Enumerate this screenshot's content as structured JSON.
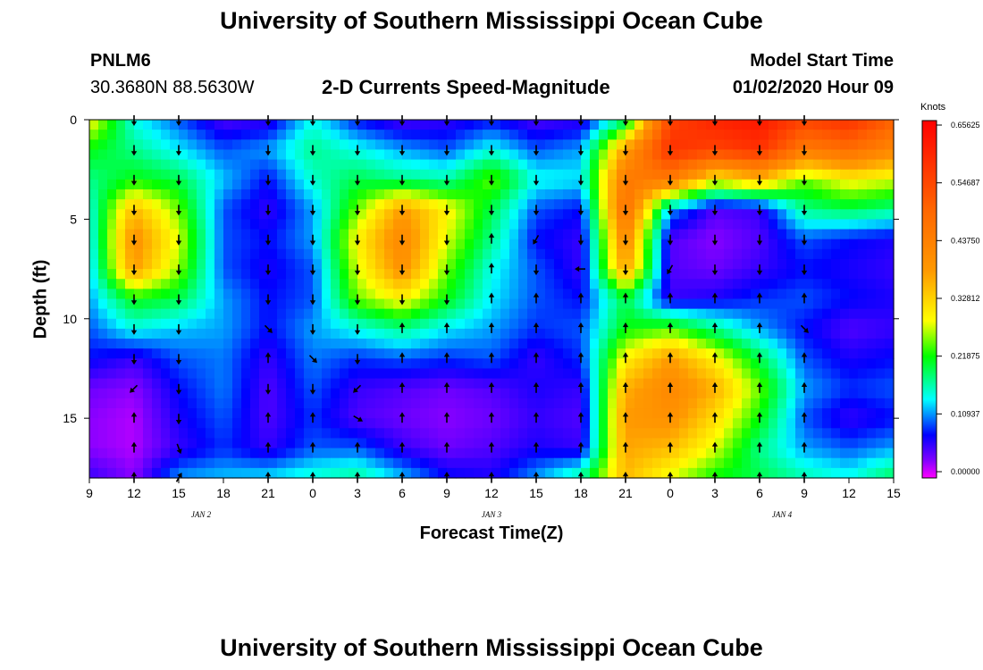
{
  "page": {
    "title_top": "University of Southern Mississippi Ocean Cube",
    "title_bottom": "University of Southern Mississippi Ocean Cube",
    "station_id": "PNLM6",
    "station_coords": "30.3680N 88.5630W",
    "plot_title": "2-D Currents Speed-Magnitude",
    "model_start_label": "Model Start Time",
    "model_start_value": "01/02/2020 Hour 09"
  },
  "colors": {
    "arrow": "#000000",
    "frame": "#000000"
  },
  "chart_data": {
    "type": "heatmap",
    "title": "2-D Currents Speed-Magnitude",
    "xlabel": "Forecast Time(Z)",
    "ylabel": "Depth (ft)",
    "x_ticks": [
      "9",
      "12",
      "15",
      "18",
      "21",
      "0",
      "3",
      "6",
      "9",
      "12",
      "15",
      "18",
      "21",
      "0",
      "3",
      "6",
      "9",
      "12",
      "15"
    ],
    "x_hours_range": [
      0,
      54
    ],
    "day_labels": [
      {
        "label": "JAN  2",
        "hour": 7.5
      },
      {
        "label": "JAN  3",
        "hour": 27
      },
      {
        "label": "JAN  4",
        "hour": 46.5
      }
    ],
    "y_ticks": [
      0,
      5,
      10,
      15
    ],
    "ylim": [
      0,
      18
    ],
    "colorbar": {
      "label": "Knots",
      "range": [
        0,
        0.65625
      ],
      "ticks": [
        "0.65625",
        "0.54687",
        "0.43750",
        "0.32812",
        "0.21875",
        "0.10937",
        "0.00000"
      ]
    },
    "depths": [
      0,
      1.5,
      3,
      4.5,
      6,
      7.5,
      9,
      10.5,
      12,
      13.5,
      15,
      16.5,
      18
    ],
    "times": [
      0,
      3,
      6,
      9,
      12,
      15,
      18,
      21,
      24,
      27,
      30,
      33,
      36,
      39,
      42,
      45,
      48,
      51,
      54
    ],
    "speed": [
      [
        0.3,
        0.15,
        0.1,
        0.05,
        0.06,
        0.15,
        0.08,
        0.05,
        0.06,
        0.08,
        0.05,
        0.06,
        0.18,
        0.55,
        0.6,
        0.62,
        0.55,
        0.58,
        0.5
      ],
      [
        0.22,
        0.18,
        0.14,
        0.1,
        0.12,
        0.18,
        0.15,
        0.12,
        0.1,
        0.15,
        0.1,
        0.12,
        0.38,
        0.58,
        0.55,
        0.58,
        0.45,
        0.48,
        0.42
      ],
      [
        0.18,
        0.22,
        0.2,
        0.13,
        0.08,
        0.16,
        0.2,
        0.18,
        0.17,
        0.25,
        0.15,
        0.14,
        0.45,
        0.45,
        0.3,
        0.35,
        0.25,
        0.3,
        0.28
      ],
      [
        0.15,
        0.35,
        0.25,
        0.1,
        0.06,
        0.12,
        0.25,
        0.38,
        0.3,
        0.2,
        0.1,
        0.08,
        0.48,
        0.12,
        0.05,
        0.06,
        0.18,
        0.2,
        0.18
      ],
      [
        0.14,
        0.4,
        0.28,
        0.1,
        0.08,
        0.12,
        0.3,
        0.42,
        0.28,
        0.18,
        0.08,
        0.06,
        0.42,
        0.05,
        0.03,
        0.05,
        0.1,
        0.08,
        0.07
      ],
      [
        0.13,
        0.38,
        0.26,
        0.1,
        0.07,
        0.1,
        0.28,
        0.4,
        0.25,
        0.15,
        0.1,
        0.06,
        0.38,
        0.05,
        0.04,
        0.06,
        0.08,
        0.07,
        0.06
      ],
      [
        0.12,
        0.22,
        0.2,
        0.12,
        0.08,
        0.1,
        0.25,
        0.3,
        0.22,
        0.14,
        0.1,
        0.08,
        0.2,
        0.06,
        0.07,
        0.09,
        0.1,
        0.08,
        0.07
      ],
      [
        0.1,
        0.15,
        0.13,
        0.12,
        0.08,
        0.12,
        0.15,
        0.18,
        0.14,
        0.12,
        0.09,
        0.1,
        0.22,
        0.24,
        0.18,
        0.12,
        0.08,
        0.05,
        0.06
      ],
      [
        0.08,
        0.06,
        0.1,
        0.11,
        0.06,
        0.11,
        0.09,
        0.1,
        0.09,
        0.1,
        0.06,
        0.09,
        0.3,
        0.38,
        0.3,
        0.2,
        0.1,
        0.07,
        0.08
      ],
      [
        0.04,
        0.03,
        0.08,
        0.11,
        0.05,
        0.1,
        0.06,
        0.05,
        0.04,
        0.05,
        0.07,
        0.06,
        0.36,
        0.42,
        0.36,
        0.25,
        0.12,
        0.09,
        0.1
      ],
      [
        0.03,
        0.02,
        0.07,
        0.1,
        0.05,
        0.09,
        0.05,
        0.04,
        0.03,
        0.04,
        0.06,
        0.05,
        0.38,
        0.4,
        0.32,
        0.22,
        0.1,
        0.06,
        0.08
      ],
      [
        0.03,
        0.02,
        0.06,
        0.09,
        0.06,
        0.1,
        0.1,
        0.06,
        0.04,
        0.05,
        0.07,
        0.06,
        0.37,
        0.35,
        0.28,
        0.18,
        0.12,
        0.1,
        0.12
      ],
      [
        0.06,
        0.03,
        0.12,
        0.13,
        0.14,
        0.16,
        0.18,
        0.13,
        0.08,
        0.07,
        0.12,
        0.18,
        0.35,
        0.28,
        0.22,
        0.2,
        0.17,
        0.15,
        0.2
      ]
    ],
    "arrow_rows": [
      0,
      1.5,
      3,
      4.5,
      6,
      7.5,
      9,
      10.5,
      12,
      13.5,
      15,
      16.5,
      18
    ],
    "arrow_cols": [
      3,
      6,
      12,
      15,
      18,
      21,
      24,
      27,
      30,
      33,
      36,
      39,
      42,
      45,
      48
    ],
    "arrow_angles": [
      [
        180,
        180,
        180,
        180,
        180,
        180,
        180,
        180,
        180,
        180,
        180,
        180,
        180,
        180,
        180
      ],
      [
        180,
        180,
        180,
        180,
        180,
        180,
        180,
        180,
        180,
        180,
        180,
        180,
        180,
        180,
        180
      ],
      [
        180,
        180,
        180,
        180,
        180,
        180,
        180,
        180,
        180,
        180,
        180,
        180,
        180,
        180,
        180
      ],
      [
        180,
        180,
        180,
        180,
        180,
        180,
        180,
        180,
        180,
        180,
        180,
        180,
        180,
        180,
        180
      ],
      [
        180,
        180,
        180,
        180,
        180,
        180,
        180,
        0,
        210,
        180,
        180,
        180,
        180,
        180,
        180
      ],
      [
        180,
        180,
        180,
        180,
        180,
        180,
        180,
        0,
        180,
        270,
        180,
        210,
        180,
        180,
        180
      ],
      [
        180,
        180,
        180,
        180,
        180,
        180,
        180,
        0,
        0,
        0,
        0,
        0,
        0,
        0,
        0
      ],
      [
        180,
        180,
        135,
        180,
        180,
        0,
        0,
        0,
        0,
        0,
        0,
        0,
        0,
        0,
        135
      ],
      [
        180,
        180,
        0,
        135,
        180,
        0,
        0,
        0,
        0,
        0,
        0,
        0,
        0,
        0,
        0
      ],
      [
        225,
        180,
        180,
        180,
        225,
        0,
        0,
        0,
        0,
        0,
        0,
        0,
        0,
        0,
        0
      ],
      [
        0,
        180,
        0,
        0,
        120,
        0,
        0,
        0,
        0,
        0,
        0,
        0,
        0,
        0,
        0
      ],
      [
        0,
        160,
        0,
        0,
        0,
        0,
        0,
        0,
        0,
        0,
        0,
        0,
        0,
        0,
        0
      ],
      [
        0,
        30,
        0,
        0,
        0,
        0,
        0,
        0,
        0,
        0,
        0,
        0,
        0,
        0,
        0
      ]
    ]
  }
}
